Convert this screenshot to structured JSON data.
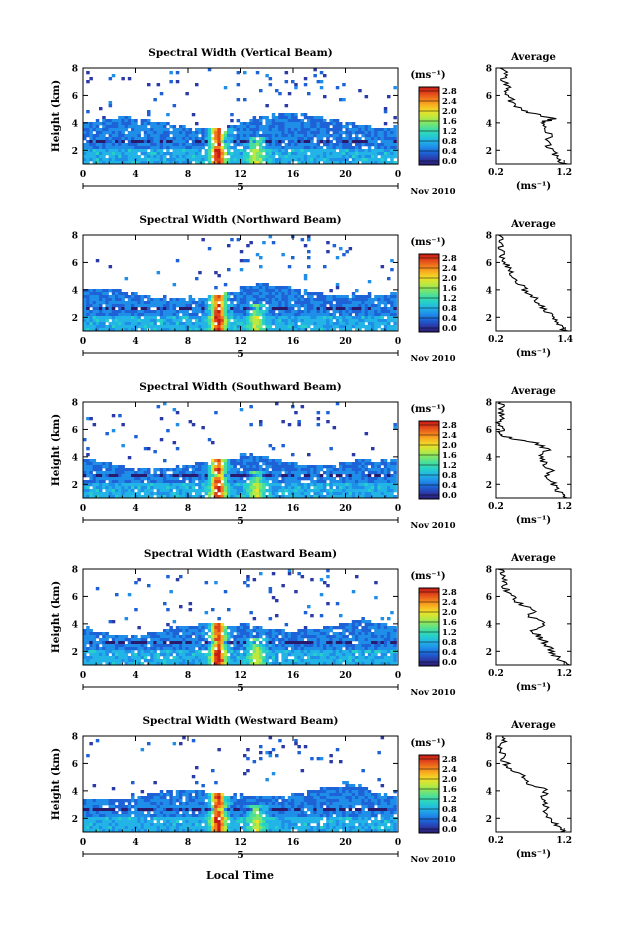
{
  "figure": {
    "time_axis_label": "Local Time",
    "date_day": "5",
    "date_month_year": "Nov 2010",
    "unit_label": "(ms⁻¹)",
    "colorbar_ticks": [
      "0.0",
      "0.4",
      "0.8",
      "1.2",
      "1.6",
      "2.0",
      "2.4",
      "2.8"
    ],
    "colormap": [
      "#2a1a6e",
      "#2b3aa8",
      "#1d62d6",
      "#1f8ee8",
      "#22b4e6",
      "#26d0c8",
      "#45dea0",
      "#7ee66a",
      "#bde83e",
      "#f0e028",
      "#f8b020",
      "#f27a1c",
      "#e0431a",
      "#c81a16"
    ]
  },
  "chart_data": [
    {
      "type": "heatmap",
      "title": "Spectral Width (Vertical Beam)",
      "ylabel": "Height (km)",
      "xlim": [
        0,
        24
      ],
      "ylim": [
        1,
        8
      ],
      "xticks": [
        "0",
        "4",
        "8",
        "12",
        "16",
        "20",
        "0"
      ],
      "yticks": [
        "2",
        "4",
        "6",
        "8"
      ],
      "clim": [
        0,
        3.0
      ],
      "profile": {
        "title": "Average",
        "xlabel": "(ms⁻¹)",
        "xticks": [
          "0.2",
          "1.2"
        ],
        "xlim": [
          0.2,
          1.3
        ],
        "yticks": [
          "2",
          "4",
          "6",
          "8"
        ],
        "ylim": [
          1,
          8
        ],
        "heights": [
          1.0,
          1.5,
          2.0,
          2.5,
          3.0,
          3.5,
          4.0,
          4.3,
          4.6,
          5.0,
          5.5,
          6.0,
          6.5,
          7.0,
          7.5,
          8.0
        ],
        "values": [
          1.2,
          1.1,
          1.0,
          0.95,
          1.0,
          0.9,
          0.85,
          1.05,
          0.8,
          0.55,
          0.45,
          0.35,
          0.4,
          0.3,
          0.35,
          0.3
        ]
      }
    },
    {
      "type": "heatmap",
      "title": "Spectral Width (Northward Beam)",
      "ylabel": "",
      "xlim": [
        0,
        24
      ],
      "ylim": [
        1,
        8
      ],
      "xticks": [
        "0",
        "4",
        "8",
        "12",
        "16",
        "20",
        "0"
      ],
      "yticks": [
        "2",
        "4",
        "6",
        "8"
      ],
      "clim": [
        0,
        3.0
      ],
      "profile": {
        "title": "Average",
        "xlabel": "(ms⁻¹)",
        "xticks": [
          "0.2",
          "1.4"
        ],
        "xlim": [
          0.2,
          1.5
        ],
        "yticks": [
          "2",
          "4",
          "6",
          "8"
        ],
        "ylim": [
          1,
          8
        ],
        "heights": [
          1.0,
          1.5,
          2.0,
          2.5,
          3.0,
          3.5,
          4.0,
          4.5,
          5.0,
          5.5,
          6.0,
          6.5,
          7.0,
          7.5,
          8.0
        ],
        "values": [
          1.4,
          1.3,
          1.2,
          1.05,
          0.95,
          0.85,
          0.7,
          0.6,
          0.5,
          0.45,
          0.35,
          0.3,
          0.3,
          0.25,
          0.3
        ]
      }
    },
    {
      "type": "heatmap",
      "title": "Spectral Width (Southward Beam)",
      "ylabel": "Height (km)",
      "xlim": [
        0,
        24
      ],
      "ylim": [
        1,
        8
      ],
      "xticks": [
        "0",
        "4",
        "8",
        "12",
        "16",
        "20",
        "0"
      ],
      "yticks": [
        "2",
        "4",
        "6",
        "8"
      ],
      "clim": [
        0,
        3.0
      ],
      "profile": {
        "title": "Average",
        "xlabel": "(ms⁻¹)",
        "xticks": [
          "0.2",
          "1.2"
        ],
        "xlim": [
          0.2,
          1.3
        ],
        "yticks": [
          "2",
          "4",
          "6",
          "8"
        ],
        "ylim": [
          1,
          8
        ],
        "heights": [
          1.0,
          1.5,
          2.0,
          2.5,
          3.0,
          3.5,
          4.0,
          4.5,
          5.0,
          5.3,
          5.6,
          6.0,
          6.5,
          7.0,
          7.5,
          8.0
        ],
        "values": [
          1.2,
          1.1,
          1.05,
          0.95,
          1.0,
          0.9,
          0.85,
          0.95,
          0.8,
          0.45,
          0.25,
          0.3,
          0.25,
          0.3,
          0.25,
          0.3
        ]
      }
    },
    {
      "type": "heatmap",
      "title": "Spectral Width (Eastward Beam)",
      "ylabel": "Height (km)",
      "xlim": [
        0,
        24
      ],
      "ylim": [
        1,
        8
      ],
      "xticks": [
        "0",
        "4",
        "8",
        "12",
        "16",
        "20",
        "0"
      ],
      "yticks": [
        "2",
        "4",
        "6",
        "8"
      ],
      "clim": [
        0,
        3.0
      ],
      "profile": {
        "title": "Average",
        "xlabel": "(ms⁻¹)",
        "xticks": [
          "0.2",
          "1.2"
        ],
        "xlim": [
          0.2,
          1.3
        ],
        "yticks": [
          "2",
          "4",
          "6",
          "8"
        ],
        "ylim": [
          1,
          8
        ],
        "heights": [
          1.0,
          1.5,
          2.0,
          2.5,
          3.0,
          3.5,
          4.0,
          4.5,
          5.0,
          5.5,
          6.0,
          6.5,
          7.0,
          7.5,
          8.0
        ],
        "values": [
          1.25,
          1.1,
          1.0,
          0.95,
          0.85,
          0.75,
          0.9,
          0.7,
          0.75,
          0.55,
          0.45,
          0.35,
          0.3,
          0.3,
          0.25
        ]
      }
    },
    {
      "type": "heatmap",
      "title": "Spectral Width (Westward Beam)",
      "ylabel": "Height (km)",
      "xlim": [
        0,
        24
      ],
      "ylim": [
        1,
        8
      ],
      "xticks": [
        "0",
        "4",
        "8",
        "12",
        "16",
        "20",
        "0"
      ],
      "yticks": [
        "2",
        "4",
        "6",
        "8"
      ],
      "clim": [
        0,
        3.0
      ],
      "profile": {
        "title": "Average",
        "xlabel": "(ms⁻¹)",
        "xticks": [
          "0.2",
          "1.2"
        ],
        "xlim": [
          0.2,
          1.3
        ],
        "yticks": [
          "2",
          "4",
          "6",
          "8"
        ],
        "ylim": [
          1,
          8
        ],
        "heights": [
          1.0,
          1.5,
          2.0,
          2.5,
          3.0,
          3.5,
          4.0,
          4.5,
          5.0,
          5.5,
          6.0,
          6.5,
          7.0,
          7.5,
          8.0
        ],
        "values": [
          1.2,
          1.1,
          1.0,
          0.95,
          0.9,
          0.85,
          0.95,
          0.7,
          0.6,
          0.45,
          0.35,
          0.3,
          0.25,
          0.3,
          0.25
        ]
      }
    }
  ]
}
